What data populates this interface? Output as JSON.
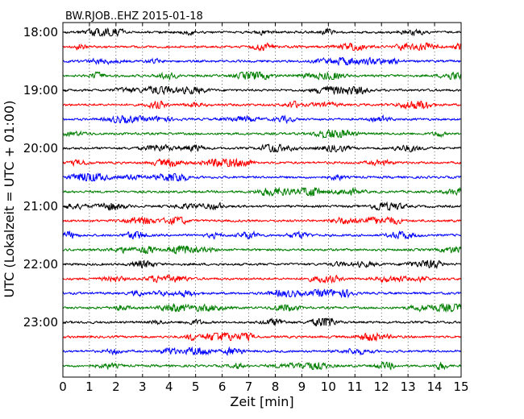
{
  "chart_data": {
    "type": "line",
    "title": "BW.RJOB..EHZ 2015-01-18",
    "xlabel": "Zeit  [min]",
    "ylabel": "UTC (Lokalzeit = UTC + 01:00)",
    "xlim": [
      0,
      15
    ],
    "x_ticks": [
      "0",
      "1",
      "2",
      "3",
      "4",
      "5",
      "6",
      "7",
      "8",
      "9",
      "10",
      "11",
      "12",
      "13",
      "14",
      "15"
    ],
    "y_ticks": [
      "18:00",
      "19:00",
      "20:00",
      "21:00",
      "22:00",
      "23:00"
    ],
    "grid": "vertical dotted at each minute",
    "trace_colors": [
      "#000000",
      "#ff0000",
      "#0000ff",
      "#007f00"
    ],
    "trace_count": 24,
    "trace_minutes": 15,
    "trace_start_times": [
      "18:00",
      "18:15",
      "18:30",
      "18:45",
      "19:00",
      "19:15",
      "19:30",
      "19:45",
      "20:00",
      "20:15",
      "20:30",
      "20:45",
      "21:00",
      "21:15",
      "21:30",
      "21:45",
      "22:00",
      "22:15",
      "22:30",
      "22:45",
      "23:00",
      "23:15",
      "23:30",
      "23:45"
    ]
  }
}
